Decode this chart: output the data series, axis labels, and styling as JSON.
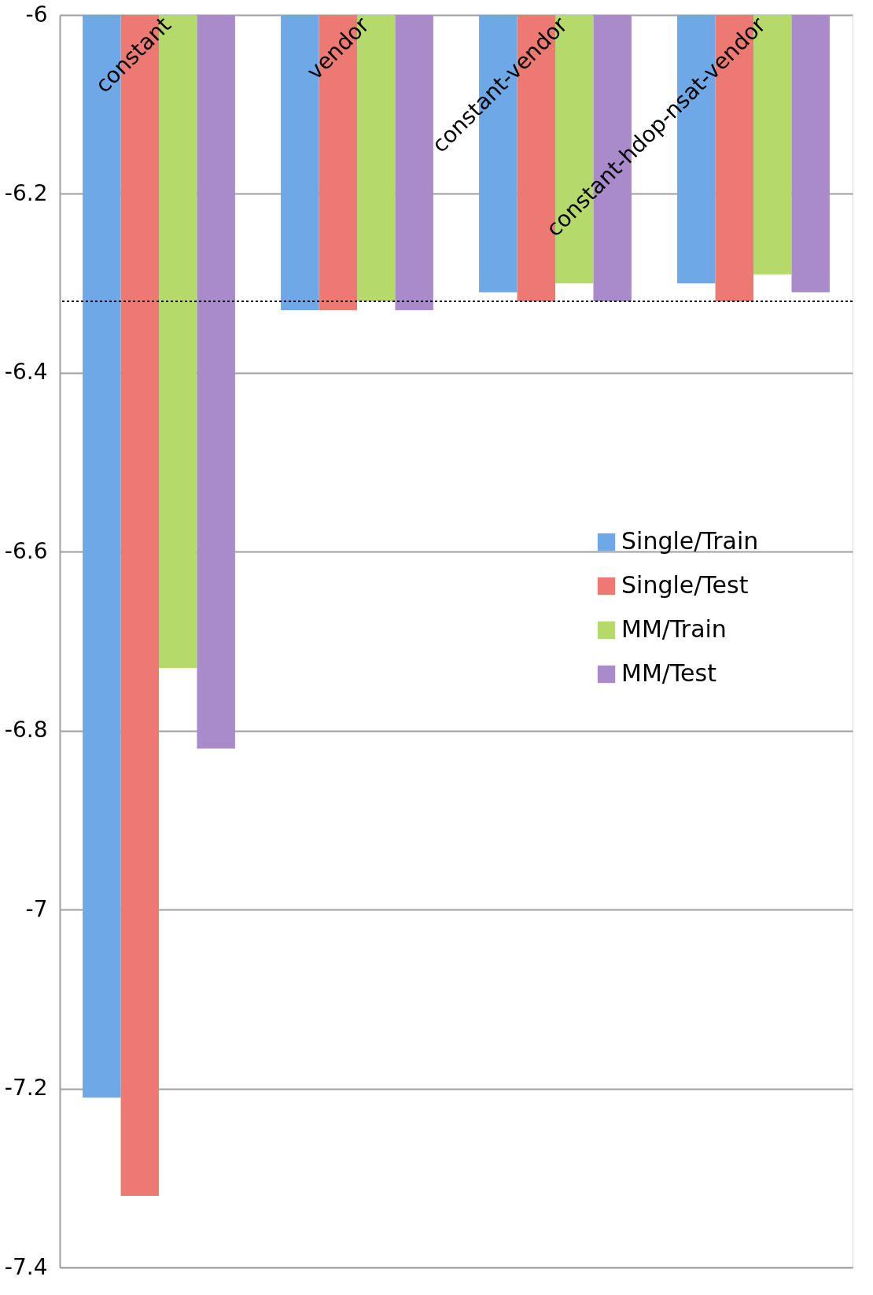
{
  "chart_data": {
    "type": "bar",
    "categories": [
      "constant",
      "vendor",
      "constant-vendor",
      "constant-hdop-nsat-vendor"
    ],
    "series": [
      {
        "name": "Single/Train",
        "color": "#6fa8e6",
        "values": [
          -7.21,
          -6.33,
          -6.31,
          -6.3
        ]
      },
      {
        "name": "Single/Test",
        "color": "#ec7a72",
        "values": [
          -7.32,
          -6.33,
          -6.32,
          -6.32
        ]
      },
      {
        "name": "MM/Train",
        "color": "#b5d96a",
        "values": [
          -6.73,
          -6.32,
          -6.3,
          -6.29
        ]
      },
      {
        "name": "MM/Test",
        "color": "#a98bcc",
        "values": [
          -6.82,
          -6.33,
          -6.32,
          -6.31
        ]
      }
    ],
    "ylim": [
      -7.4,
      -6
    ],
    "yticks": [
      -7.4,
      -7.2,
      -7,
      -6.8,
      -6.6,
      -6.4,
      -6.2,
      -6
    ],
    "ref_lines": [
      {
        "axis": "y",
        "value": -6.32,
        "label": null,
        "line_style": "dotted",
        "color": "#000000"
      }
    ],
    "grid": "y",
    "legend": "right",
    "tick_labels": "y"
  }
}
